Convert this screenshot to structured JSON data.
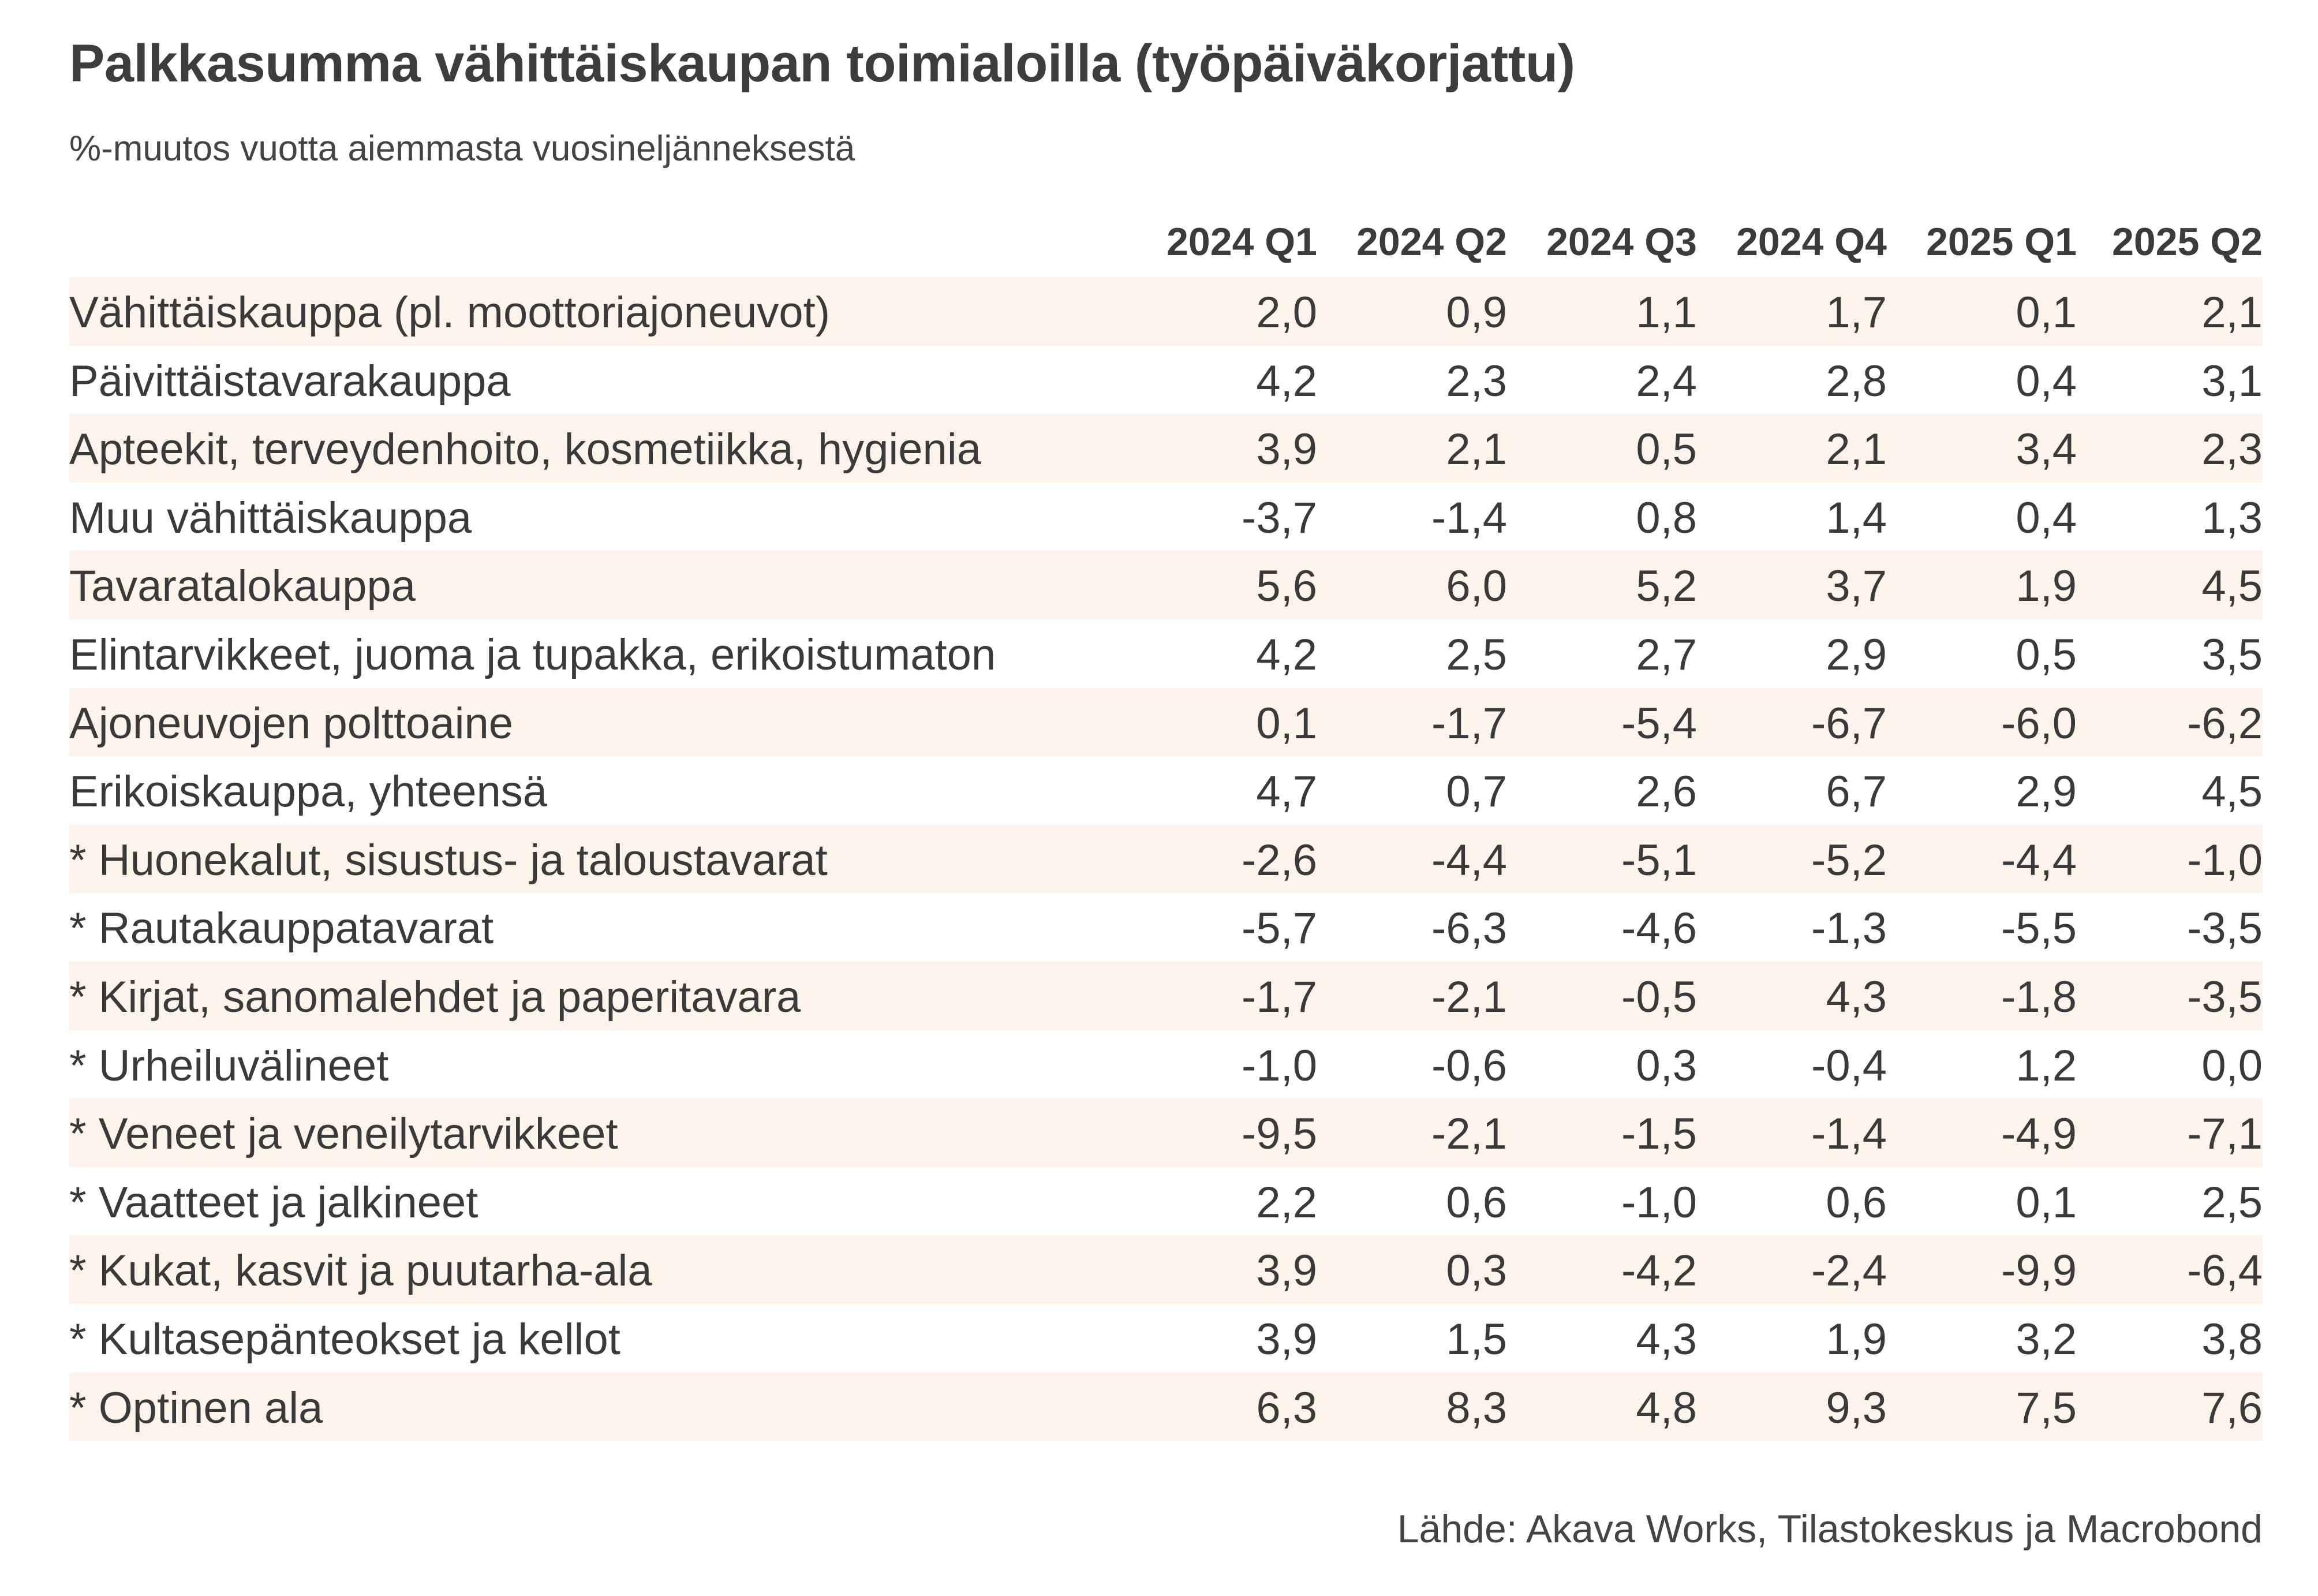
{
  "chart_data": {
    "type": "table",
    "title": "Palkkasumma vähittäiskaupan toimialoilla (työpäiväkorjattu)",
    "subtitle": "%-muutos vuotta aiemmasta vuosineljänneksestä",
    "columns": [
      "2024 Q1",
      "2024 Q2",
      "2024 Q3",
      "2024 Q4",
      "2025 Q1",
      "2025 Q2"
    ],
    "rows": [
      {
        "label": "Vähittäiskauppa (pl. moottoriajoneuvot)",
        "values": [
          "2,0",
          "0,9",
          "1,1",
          "1,7",
          "0,1",
          "2,1"
        ]
      },
      {
        "label": "Päivittäistavarakauppa",
        "values": [
          "4,2",
          "2,3",
          "2,4",
          "2,8",
          "0,4",
          "3,1"
        ]
      },
      {
        "label": "Apteekit, terveydenhoito, kosmetiikka, hygienia",
        "values": [
          "3,9",
          "2,1",
          "0,5",
          "2,1",
          "3,4",
          "2,3"
        ]
      },
      {
        "label": "Muu vähittäiskauppa",
        "values": [
          "-3,7",
          "-1,4",
          "0,8",
          "1,4",
          "0,4",
          "1,3"
        ]
      },
      {
        "label": "Tavaratalokauppa",
        "values": [
          "5,6",
          "6,0",
          "5,2",
          "3,7",
          "1,9",
          "4,5"
        ]
      },
      {
        "label": "Elintarvikkeet, juoma ja tupakka, erikoistumaton",
        "values": [
          "4,2",
          "2,5",
          "2,7",
          "2,9",
          "0,5",
          "3,5"
        ]
      },
      {
        "label": "Ajoneuvojen polttoaine",
        "values": [
          "0,1",
          "-1,7",
          "-5,4",
          "-6,7",
          "-6,0",
          "-6,2"
        ]
      },
      {
        "label": "Erikoiskauppa, yhteensä",
        "values": [
          "4,7",
          "0,7",
          "2,6",
          "6,7",
          "2,9",
          "4,5"
        ]
      },
      {
        "label": "* Huonekalut, sisustus- ja taloustavarat",
        "values": [
          "-2,6",
          "-4,4",
          "-5,1",
          "-5,2",
          "-4,4",
          "-1,0"
        ]
      },
      {
        "label": "* Rautakauppatavarat",
        "values": [
          "-5,7",
          "-6,3",
          "-4,6",
          "-1,3",
          "-5,5",
          "-3,5"
        ]
      },
      {
        "label": "* Kirjat, sanomalehdet ja paperitavara",
        "values": [
          "-1,7",
          "-2,1",
          "-0,5",
          "4,3",
          "-1,8",
          "-3,5"
        ]
      },
      {
        "label": "* Urheiluvälineet",
        "values": [
          "-1,0",
          "-0,6",
          "0,3",
          "-0,4",
          "1,2",
          "0,0"
        ]
      },
      {
        "label": "* Veneet ja veneilytarvikkeet",
        "values": [
          "-9,5",
          "-2,1",
          "-1,5",
          "-1,4",
          "-4,9",
          "-7,1"
        ]
      },
      {
        "label": "* Vaatteet ja jalkineet",
        "values": [
          "2,2",
          "0,6",
          "-1,0",
          "0,6",
          "0,1",
          "2,5"
        ]
      },
      {
        "label": "* Kukat, kasvit ja puutarha-ala",
        "values": [
          "3,9",
          "0,3",
          "-4,2",
          "-2,4",
          "-9,9",
          "-6,4"
        ]
      },
      {
        "label": "* Kultasepänteokset ja kellot",
        "values": [
          "3,9",
          "1,5",
          "4,3",
          "1,9",
          "3,2",
          "3,8"
        ]
      },
      {
        "label": "* Optinen ala",
        "values": [
          "6,3",
          "8,3",
          "4,8",
          "9,3",
          "7,5",
          "7,6"
        ]
      }
    ],
    "source": "Lähde: Akava Works, Tilastokeskus ja Macrobond",
    "colors": {
      "row_shade": "#fcf3ea",
      "text": "#3a3a3a"
    }
  }
}
